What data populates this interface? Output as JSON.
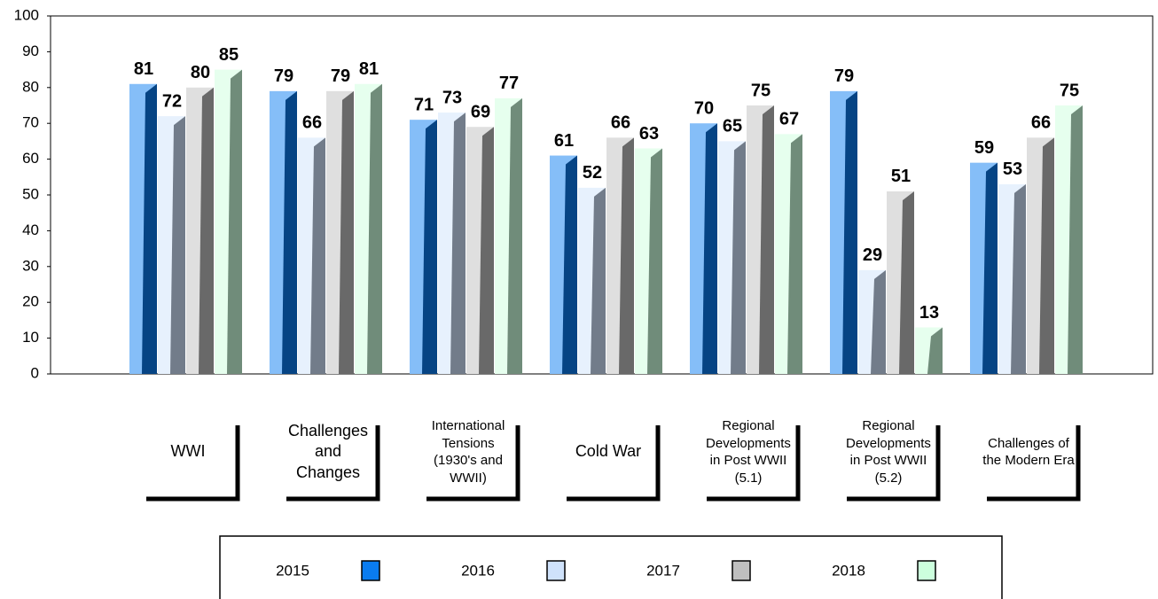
{
  "chart_data": {
    "type": "bar",
    "categories": [
      "WWI",
      "Challenges and Changes",
      "International Tensions (1930's and WWII)",
      "Cold War",
      "Regional Developments in Post WWII (5.1)",
      "Regional Developments in Post WWII (5.2)",
      "Challenges of the Modern Era"
    ],
    "series": [
      {
        "name": "2015",
        "color": "#0a7cf0",
        "values": [
          81,
          79,
          71,
          61,
          70,
          79,
          59
        ]
      },
      {
        "name": "2016",
        "color": "#cfe2fb",
        "values": [
          72,
          66,
          73,
          52,
          65,
          29,
          53
        ]
      },
      {
        "name": "2017",
        "color": "#bfbfbf",
        "values": [
          80,
          79,
          69,
          66,
          75,
          51,
          66
        ]
      },
      {
        "name": "2018",
        "color": "#ccffdd",
        "values": [
          85,
          81,
          77,
          63,
          67,
          13,
          75
        ]
      }
    ],
    "ylim": [
      0,
      100
    ],
    "yticks": [
      0,
      10,
      20,
      30,
      40,
      50,
      60,
      70,
      80,
      90,
      100
    ],
    "grid": false,
    "legend": "bottom"
  }
}
